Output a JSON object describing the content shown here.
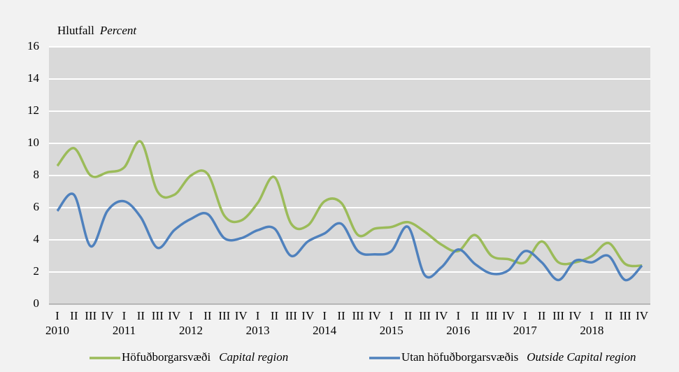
{
  "chart_data": {
    "type": "line",
    "ylabel": "Hlutfall",
    "ylabel_en": "Percent",
    "categories": [
      "I",
      "II",
      "III",
      "IV",
      "I",
      "II",
      "III",
      "IV",
      "I",
      "II",
      "III",
      "IV",
      "I",
      "II",
      "III",
      "IV",
      "I",
      "II",
      "III",
      "IV",
      "I",
      "II",
      "III",
      "IV",
      "I",
      "II",
      "III",
      "IV",
      "I",
      "II",
      "III",
      "IV",
      "I",
      "II",
      "III",
      "IV"
    ],
    "years": [
      "2010",
      "2011",
      "2012",
      "2013",
      "2014",
      "2015",
      "2016",
      "2017",
      "2018"
    ],
    "series": [
      {
        "name": "Höfuðborgarsvæði",
        "name_en": "Capital region",
        "color": "#9bbb59",
        "values": [
          8.6,
          9.7,
          8.0,
          8.2,
          8.5,
          10.1,
          7.0,
          6.8,
          8.0,
          8.1,
          5.5,
          5.2,
          6.3,
          7.9,
          5.0,
          4.9,
          6.4,
          6.3,
          4.3,
          4.7,
          4.8,
          5.1,
          4.5,
          3.7,
          3.3,
          4.3,
          3.0,
          2.8,
          2.6,
          3.9,
          2.6,
          2.6,
          3.0,
          3.8,
          2.5,
          2.4
        ]
      },
      {
        "name": "Utan höfuðborgarsvæðis",
        "name_en": "Outside Capital region",
        "color": "#4f81bd",
        "values": [
          5.8,
          6.8,
          3.6,
          5.8,
          6.4,
          5.4,
          3.5,
          4.6,
          5.3,
          5.6,
          4.1,
          4.1,
          4.6,
          4.7,
          3.0,
          3.9,
          4.4,
          5.0,
          3.3,
          3.1,
          3.3,
          4.8,
          1.8,
          2.3,
          3.4,
          2.5,
          1.9,
          2.1,
          3.3,
          2.6,
          1.5,
          2.7,
          2.6,
          3.0,
          1.5,
          2.4
        ]
      }
    ],
    "ylim": [
      0,
      16
    ],
    "yticks": [
      0,
      2,
      4,
      6,
      8,
      10,
      12,
      14,
      16
    ],
    "grid": true
  }
}
